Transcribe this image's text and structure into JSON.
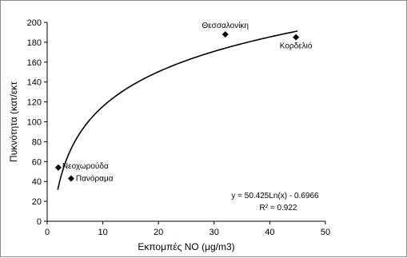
{
  "chart_data": {
    "type": "scatter",
    "xlabel": "Εκπομπές NO (μg/m3)",
    "ylabel": "Πυκνότητα (κατ/εκτ",
    "xlim": [
      0,
      50
    ],
    "ylim": [
      0,
      200
    ],
    "x_ticks": [
      "0",
      "10",
      "20",
      "30",
      "40",
      "50"
    ],
    "y_ticks": [
      "0",
      "20",
      "40",
      "60",
      "80",
      "100",
      "120",
      "140",
      "160",
      "180",
      "200"
    ],
    "grid": false,
    "marker": "diamond",
    "points": [
      {
        "label": "Νεοχωρούδα",
        "x": 2,
        "y": 54
      },
      {
        "label": "Πανόραμα",
        "x": 4.3,
        "y": 43
      },
      {
        "label": "Θεσσαλονίκη",
        "x": 32,
        "y": 188
      },
      {
        "label": "Κορδελιό",
        "x": 44.7,
        "y": 185
      }
    ],
    "trendline": {
      "type": "logarithmic",
      "a": 50.425,
      "b": -0.6966,
      "x_from": 1.9,
      "x_to": 45
    },
    "equation_text": "y = 50.425Ln(x) - 0.6966",
    "r2_text": "R² = 0.922"
  }
}
